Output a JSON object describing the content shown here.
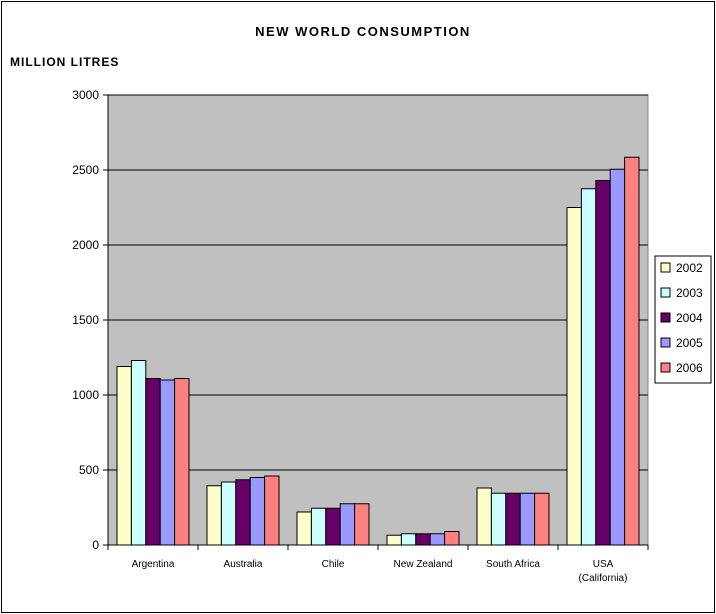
{
  "chart_data": {
    "type": "bar",
    "title": "NEW WORLD CONSUMPTION",
    "ylabel": "MILLION LITRES",
    "xlabel": "",
    "ylim": [
      0,
      3000
    ],
    "yticks": [
      "0",
      "500",
      "1000",
      "1500",
      "2000",
      "2500",
      "3000"
    ],
    "categories": [
      {
        "label": "Argentina",
        "sublabel": ""
      },
      {
        "label": "Australia",
        "sublabel": ""
      },
      {
        "label": "Chile",
        "sublabel": ""
      },
      {
        "label": "New Zealand",
        "sublabel": ""
      },
      {
        "label": "South Africa",
        "sublabel": ""
      },
      {
        "label": "USA",
        "sublabel": "(California)"
      }
    ],
    "series": [
      {
        "name": "2002",
        "color": "#FFFFCC",
        "values": [
          1190,
          395,
          220,
          65,
          380,
          2250
        ]
      },
      {
        "name": "2003",
        "color": "#CCFFFF",
        "values": [
          1230,
          420,
          245,
          75,
          345,
          2375
        ]
      },
      {
        "name": "2004",
        "color": "#660066",
        "values": [
          1110,
          435,
          245,
          75,
          345,
          2430
        ]
      },
      {
        "name": "2005",
        "color": "#9999FF",
        "values": [
          1100,
          450,
          275,
          75,
          345,
          2505
        ]
      },
      {
        "name": "2006",
        "color": "#FF8080",
        "values": [
          1110,
          460,
          275,
          90,
          345,
          2585
        ]
      }
    ],
    "plot_background": "#C0C0C0",
    "grid": true,
    "legend_position": "right"
  }
}
